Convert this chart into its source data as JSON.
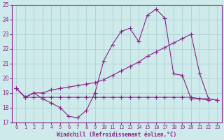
{
  "line1_y": [
    19.3,
    18.7,
    19.0,
    18.6,
    18.3,
    18.0,
    17.4,
    17.3,
    17.8,
    19.0,
    21.2,
    22.3,
    23.2,
    23.4,
    22.5,
    24.3,
    24.7,
    24.1,
    20.3,
    20.2,
    18.6,
    18.6,
    18.5
  ],
  "line2_y": [
    19.3,
    18.7,
    19.0,
    19.0,
    19.2,
    19.3,
    19.4,
    19.5,
    19.6,
    19.7,
    19.9,
    20.2,
    20.5,
    20.8,
    21.1,
    21.5,
    21.8,
    22.1,
    22.4,
    22.7,
    23.0,
    20.3,
    18.6,
    18.5
  ],
  "line3_y": [
    19.3,
    18.7,
    18.7,
    18.7,
    18.7,
    18.7,
    18.7,
    18.7,
    18.7,
    18.7,
    18.7,
    18.7,
    18.7,
    18.7,
    18.7,
    18.7,
    18.7,
    18.7,
    18.7,
    18.7,
    18.7,
    18.6,
    18.6,
    18.5
  ],
  "ylim": [
    17,
    25
  ],
  "yticks": [
    17,
    18,
    19,
    20,
    21,
    22,
    23,
    24,
    25
  ],
  "xlabel": "Windchill (Refroidissement éolien,°C)",
  "bg_color": "#ceeaea",
  "grid_color": "#a8cccc",
  "line_color": "#882288",
  "axis_color": "#882288",
  "tick_color": "#882288",
  "label_color": "#882288"
}
